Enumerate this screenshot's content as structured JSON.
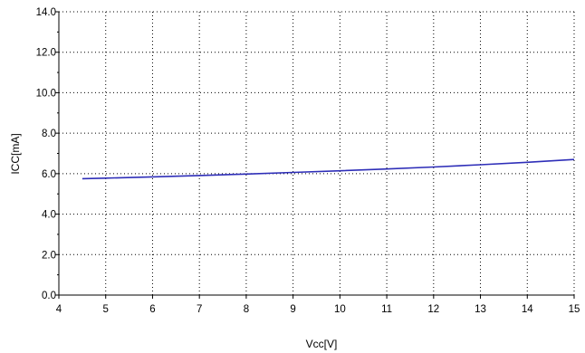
{
  "chart_data": {
    "type": "line",
    "title": "",
    "xlabel": "Vcc[V]",
    "ylabel": "ICC[mA]",
    "xlim": [
      4,
      15
    ],
    "ylim": [
      0,
      14
    ],
    "x_ticks": [
      "4",
      "5",
      "6",
      "7",
      "8",
      "9",
      "10",
      "11",
      "12",
      "13",
      "14",
      "15"
    ],
    "y_ticks": [
      "0.0",
      "2.0",
      "4.0",
      "6.0",
      "8.0",
      "10.0",
      "12.0",
      "14.0"
    ],
    "grid": true,
    "series": [
      {
        "color": "#2e2eb8",
        "x": [
          4.5,
          5,
          6,
          7,
          8,
          9,
          10,
          11,
          12,
          13,
          14,
          15
        ],
        "y": [
          5.75,
          5.78,
          5.84,
          5.91,
          5.98,
          6.06,
          6.14,
          6.23,
          6.33,
          6.44,
          6.56,
          6.7
        ]
      }
    ]
  }
}
